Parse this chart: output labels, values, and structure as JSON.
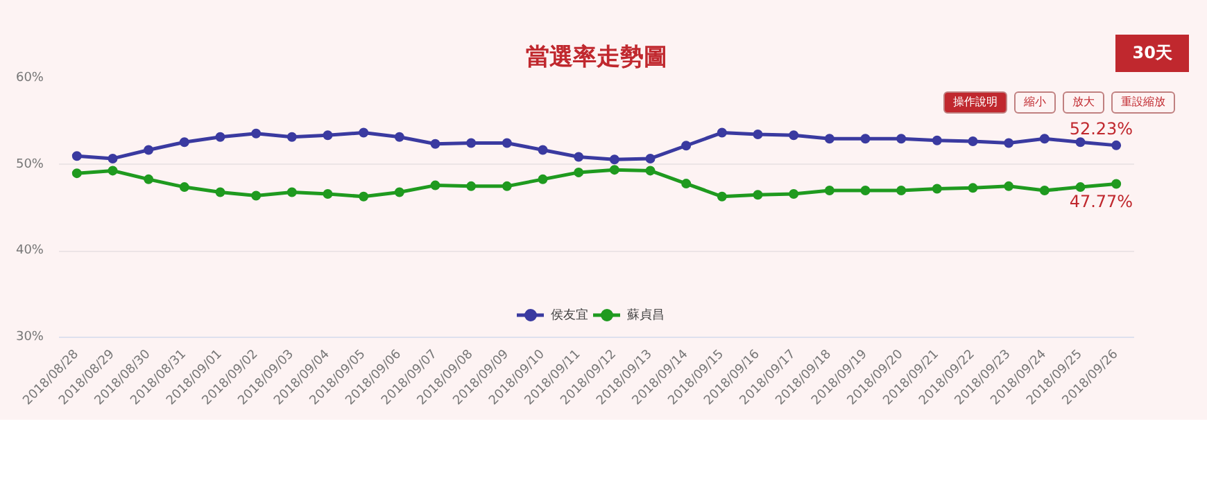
{
  "chart_data": {
    "type": "line",
    "title": "當選率走勢圖",
    "categories": [
      "2018/08/28",
      "2018/08/29",
      "2018/08/30",
      "2018/08/31",
      "2018/09/01",
      "2018/09/02",
      "2018/09/03",
      "2018/09/04",
      "2018/09/05",
      "2018/09/06",
      "2018/09/07",
      "2018/09/08",
      "2018/09/09",
      "2018/09/10",
      "2018/09/11",
      "2018/09/12",
      "2018/09/13",
      "2018/09/14",
      "2018/09/15",
      "2018/09/16",
      "2018/09/17",
      "2018/09/18",
      "2018/09/19",
      "2018/09/20",
      "2018/09/21",
      "2018/09/22",
      "2018/09/23",
      "2018/09/24",
      "2018/09/25",
      "2018/09/26"
    ],
    "series": [
      {
        "name": "侯友宜",
        "color": "#3a3aa0",
        "values": [
          51.0,
          50.7,
          51.7,
          52.6,
          53.2,
          53.6,
          53.2,
          53.4,
          53.7,
          53.2,
          52.4,
          52.5,
          52.5,
          51.7,
          50.9,
          50.6,
          50.7,
          52.2,
          53.7,
          53.5,
          53.4,
          53.0,
          53.0,
          53.0,
          52.8,
          52.7,
          52.5,
          53.0,
          52.6,
          52.23
        ]
      },
      {
        "name": "蘇貞昌",
        "color": "#1f9a1f",
        "values": [
          49.0,
          49.3,
          48.3,
          47.4,
          46.8,
          46.4,
          46.8,
          46.6,
          46.3,
          46.8,
          47.6,
          47.5,
          47.5,
          48.3,
          49.1,
          49.4,
          49.3,
          47.8,
          46.3,
          46.5,
          46.6,
          47.0,
          47.0,
          47.0,
          47.2,
          47.3,
          47.5,
          47.0,
          47.4,
          47.77
        ]
      }
    ],
    "ylim": [
      30,
      60
    ],
    "yticks": [
      {
        "value": 30,
        "label": "30%"
      },
      {
        "value": 40,
        "label": "40%"
      },
      {
        "value": 50,
        "label": "50%"
      },
      {
        "value": 60,
        "label": "60%"
      }
    ],
    "grid": "y",
    "legend": "bottom",
    "marker": "circle",
    "line_style": "solid",
    "annotations": [
      "30天",
      "操作說明",
      "縮小",
      "放大",
      "重設縮放",
      {
        "text": "52.23%",
        "x": "2018/09/26",
        "y": 52.23
      },
      {
        "text": "47.77%",
        "x": "2018/09/26",
        "y": 47.77
      }
    ]
  }
}
